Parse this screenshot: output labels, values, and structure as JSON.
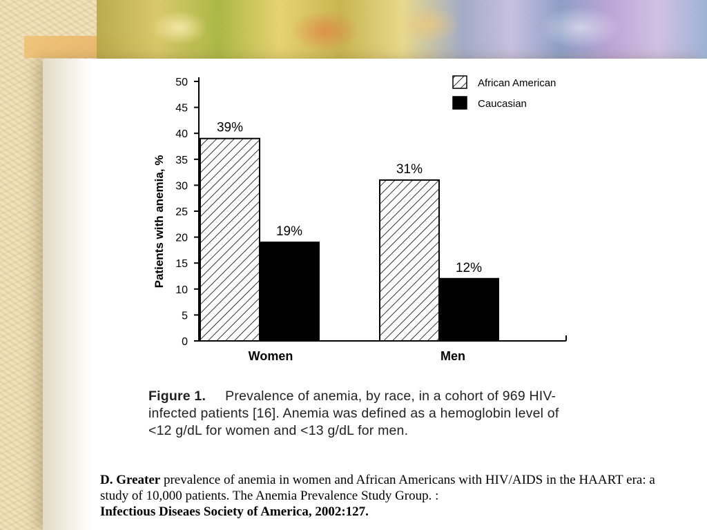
{
  "chart_data": {
    "type": "bar",
    "categories": [
      "Women",
      "Men"
    ],
    "series": [
      {
        "name": "African American",
        "values": [
          39,
          31
        ],
        "labels": [
          "39%",
          "31%"
        ],
        "pattern": "hatched"
      },
      {
        "name": "Caucasian",
        "values": [
          19,
          12
        ],
        "labels": [
          "19%",
          "12%"
        ],
        "color": "#000000"
      }
    ],
    "ylabel": "Patients with anemia, %",
    "xlabel": "",
    "ylim": [
      0,
      50
    ],
    "yticks": [
      0,
      5,
      10,
      15,
      20,
      25,
      30,
      35,
      40,
      45,
      50
    ],
    "legend_position": "top-right",
    "grid": false
  },
  "caption": {
    "label": "Figure 1.",
    "text": "Prevalence of anemia, by race, in a cohort of 969 HIV-infected patients [16]. Anemia was defined as a hemoglobin level of <12 g/dL for women and <13 g/dL for men."
  },
  "reference": {
    "author": "D. Greater",
    "text": " prevalence of anemia in women and African Americans with HIV/AIDS in the HAART era: a study of 10,000 patients. The Anemia Prevalence Study Group. :",
    "source": "Infectious Diseaes Society of America, 2002:127."
  }
}
